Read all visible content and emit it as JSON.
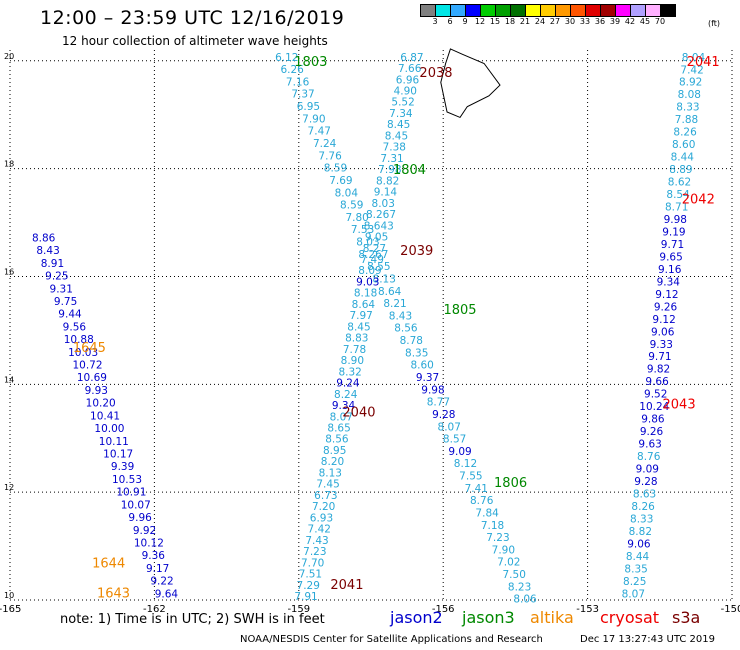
{
  "header": {
    "title": "12:00  –  23:59 UTC 12/16/2019",
    "subtitle": "12 hour collection of altimeter wave heights"
  },
  "scale": {
    "unit": "(ft)",
    "labels": [
      "3",
      "6",
      "9",
      "12",
      "15",
      "18",
      "21",
      "24",
      "27",
      "30",
      "33",
      "36",
      "39",
      "42",
      "45",
      "70"
    ],
    "colors": [
      "#808080",
      "#00e5e5",
      "#33aaff",
      "#0000ff",
      "#00cc00",
      "#00a000",
      "#007000",
      "#ffff00",
      "#ffcc00",
      "#ff9900",
      "#ff5500",
      "#e00000",
      "#a00000",
      "#ff00ff",
      "#b0a0ff",
      "#ffb0ff",
      "#000000"
    ]
  },
  "map": {
    "lon_ticks": [
      "-165",
      "-162",
      "-159",
      "-156",
      "-153",
      "-150"
    ],
    "lat_ticks": [
      "20",
      "18",
      "16",
      "14",
      "12",
      "10"
    ],
    "lon_range": [
      -165,
      -150
    ],
    "lat_range": [
      10,
      20.2
    ],
    "colors": {
      "light": "#29a7d6",
      "dark": "#0000cc",
      "jason3": "#008800",
      "altika": "#ee8800",
      "cryosat": "#ee0000",
      "s3a": "#7a0000"
    },
    "passes": [
      {
        "label": "1803",
        "color": "jason3",
        "anchor": [
          -158.75,
          19.9
        ]
      },
      {
        "label": "1804",
        "color": "jason3",
        "anchor": [
          -156.7,
          17.9
        ]
      },
      {
        "label": "1805",
        "color": "jason3",
        "anchor": [
          -155.65,
          15.3
        ]
      },
      {
        "label": "1806",
        "color": "jason3",
        "anchor": [
          -154.6,
          12.1
        ]
      },
      {
        "label": "1645",
        "color": "altika",
        "anchor": [
          -163.35,
          14.6
        ]
      },
      {
        "label": "1644",
        "color": "altika",
        "anchor": [
          -162.95,
          10.6
        ]
      },
      {
        "label": "1643",
        "color": "altika",
        "anchor": [
          -162.85,
          10.05
        ]
      },
      {
        "label": "2038",
        "color": "s3a",
        "anchor": [
          -156.15,
          19.7
        ]
      },
      {
        "label": "2039",
        "color": "s3a",
        "anchor": [
          -156.55,
          16.4
        ]
      },
      {
        "label": "2040",
        "color": "s3a",
        "anchor": [
          -157.75,
          13.4
        ]
      },
      {
        "label": "2041",
        "color": "s3a",
        "anchor": [
          -158.0,
          10.2
        ]
      },
      {
        "label": "2041",
        "color": "cryosat",
        "anchor": [
          -150.6,
          19.9
        ]
      },
      {
        "label": "2042",
        "color": "cryosat",
        "anchor": [
          -150.7,
          17.35
        ]
      },
      {
        "label": "2043",
        "color": "cryosat",
        "anchor": [
          -151.1,
          13.55
        ]
      }
    ],
    "tracks": [
      {
        "name": "track-1803-1806",
        "lon": [
          -159.25,
          -154.3
        ],
        "lat": [
          20.0,
          9.95
        ],
        "values": [
          "6.12",
          "6.26",
          "7.16",
          "7.37",
          "6.95",
          "7.90",
          "7.47",
          "7.24",
          "7.76",
          "8.59",
          "7.69",
          "8.04",
          "8.59",
          "7.80",
          "7.53",
          "8.03",
          "8.267",
          "8.55",
          "8.13",
          "8.64",
          "8.21",
          "8.43",
          "8.56",
          "8.78",
          "8.35",
          "8.60",
          "9.37",
          "9.98",
          "8.77",
          "9.28",
          "8.07",
          "8.57",
          "9.09",
          "8.12",
          "7.55",
          "7.41",
          "8.76",
          "7.84",
          "7.18",
          "7.23",
          "7.90",
          "7.02",
          "7.50",
          "8.23",
          "8.06"
        ],
        "dark": [
          "9.37",
          "9.98",
          "9.28",
          "9.09"
        ]
      },
      {
        "name": "track-2038-2041",
        "lon": [
          -156.65,
          -158.85
        ],
        "lat": [
          20.0,
          10.0
        ],
        "values": [
          "6.87",
          "7.66",
          "6.96",
          "4.90",
          "5.52",
          "7.34",
          "8.45",
          "8.45",
          "7.38",
          "7.31",
          "7.98",
          "8.82",
          "9.14",
          "8.03",
          "8.267",
          "8.643",
          "9.05",
          "8.27",
          "7.49",
          "8.09",
          "9.03",
          "8.18",
          "8.64",
          "7.97",
          "8.45",
          "8.83",
          "7.78",
          "8.90",
          "8.32",
          "9.24",
          "8.24",
          "9.34",
          "8.07",
          "8.65",
          "8.56",
          "8.95",
          "8.20",
          "8.13",
          "7.45",
          "6.73",
          "7.20",
          "6.93",
          "7.42",
          "7.43",
          "7.23",
          "7.70",
          "7.51",
          "7.29",
          "7.91"
        ],
        "dark": [
          "9.03",
          "9.24",
          "9.34"
        ]
      },
      {
        "name": "track-1643-1645",
        "lon": [
          -164.3,
          -161.75
        ],
        "lat": [
          16.65,
          10.05
        ],
        "values": [
          "8.86",
          "8.43",
          "8.91",
          "9.25",
          "9.31",
          "9.75",
          "9.44",
          "9.56",
          "10.88",
          "10.03",
          "10.72",
          "10.69",
          "9.93",
          "10.20",
          "10.41",
          "10.00",
          "10.11",
          "10.17",
          "9.39",
          "10.53",
          "10.91",
          "10.07",
          "9.96",
          "9.92",
          "10.12",
          "9.36",
          "9.17",
          "9.22",
          "9.64"
        ],
        "dark": "all"
      },
      {
        "name": "track-2041-2043",
        "lon": [
          -150.8,
          -152.05
        ],
        "lat": [
          20.0,
          10.05
        ],
        "values": [
          "8.04",
          "7.42",
          "8.92",
          "8.08",
          "8.33",
          "7.88",
          "8.26",
          "8.60",
          "8.44",
          "8.89",
          "8.62",
          "8.54",
          "8.71",
          "9.98",
          "9.19",
          "9.71",
          "9.65",
          "9.16",
          "9.34",
          "9.12",
          "9.26",
          "9.12",
          "9.06",
          "9.33",
          "9.71",
          "9.82",
          "9.66",
          "9.52",
          "10.24",
          "9.86",
          "9.26",
          "9.63",
          "8.76",
          "9.09",
          "9.28",
          "8.63",
          "8.26",
          "8.33",
          "8.82",
          "9.06",
          "8.44",
          "8.35",
          "8.25",
          "8.07"
        ],
        "dark": [
          "9.98",
          "9.19",
          "9.71",
          "9.65",
          "9.16",
          "9.34",
          "9.12",
          "9.26",
          "9.06",
          "9.33",
          "9.82",
          "9.66",
          "9.52",
          "10.24",
          "9.86",
          "9.63",
          "9.09",
          "9.28",
          "9.06"
        ]
      }
    ]
  },
  "footer": {
    "note": "note:  1) Time is in UTC;  2) SWH is in feet",
    "legend": [
      {
        "label": "jason2",
        "color": "#0000cc"
      },
      {
        "label": "jason3",
        "color": "#008800"
      },
      {
        "label": "altika",
        "color": "#ee8800"
      },
      {
        "label": "cryosat",
        "color": "#ee0000"
      },
      {
        "label": "s3a",
        "color": "#7a0000"
      }
    ],
    "credit": "NOAA/NESDIS Center for Satellite Applications and Research",
    "timestamp": "Dec 17 13:27:43 UTC 2019"
  }
}
